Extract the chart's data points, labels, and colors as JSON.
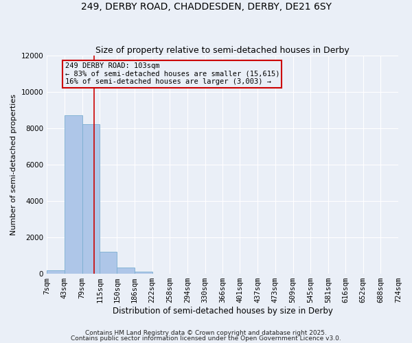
{
  "title1": "249, DERBY ROAD, CHADDESDEN, DERBY, DE21 6SY",
  "title2": "Size of property relative to semi-detached houses in Derby",
  "xlabel": "Distribution of semi-detached houses by size in Derby",
  "ylabel": "Number of semi-detached properties",
  "footer1": "Contains HM Land Registry data © Crown copyright and database right 2025.",
  "footer2": "Contains public sector information licensed under the Open Government Licence v3.0.",
  "bin_edges": [
    7,
    43,
    79,
    115,
    150,
    186,
    222,
    258,
    294,
    330,
    366,
    401,
    437,
    473,
    509,
    545,
    581,
    616,
    652,
    688,
    724
  ],
  "bin_labels": [
    "7sqm",
    "43sqm",
    "79sqm",
    "115sqm",
    "150sqm",
    "186sqm",
    "222sqm",
    "258sqm",
    "294sqm",
    "330sqm",
    "366sqm",
    "401sqm",
    "437sqm",
    "473sqm",
    "509sqm",
    "545sqm",
    "581sqm",
    "616sqm",
    "652sqm",
    "688sqm",
    "724sqm"
  ],
  "bar_heights": [
    200,
    8700,
    8200,
    1200,
    350,
    100,
    0,
    0,
    0,
    0,
    0,
    0,
    0,
    0,
    0,
    0,
    0,
    0,
    0,
    0
  ],
  "bar_color": "#aec6e8",
  "bar_edgecolor": "#7aaed0",
  "property_size": 103,
  "redline_color": "#cc0000",
  "annotation_line1": "249 DERBY ROAD: 103sqm",
  "annotation_line2": "← 83% of semi-detached houses are smaller (15,615)",
  "annotation_line3": "16% of semi-detached houses are larger (3,003) →",
  "annotation_box_edgecolor": "#cc0000",
  "ylim": [
    0,
    12000
  ],
  "yticks": [
    0,
    2000,
    4000,
    6000,
    8000,
    10000,
    12000
  ],
  "bg_color": "#eaeff7",
  "grid_color": "#ffffff",
  "title1_fontsize": 10,
  "title2_fontsize": 9,
  "xlabel_fontsize": 8.5,
  "ylabel_fontsize": 8,
  "tick_fontsize": 7.5,
  "annotation_fontsize": 7.5,
  "footer_fontsize": 6.5
}
